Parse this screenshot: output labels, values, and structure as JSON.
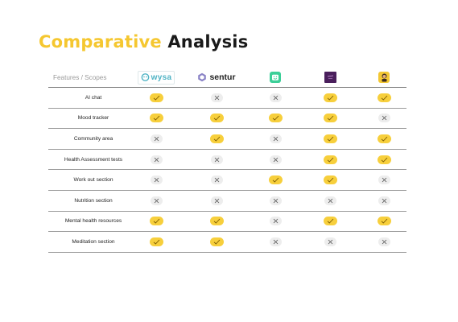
{
  "title": {
    "part1": "Comparative",
    "part2": "Analysis"
  },
  "header": {
    "feature_label": "Features / Scopes",
    "apps": [
      {
        "name": "wysa",
        "icon": "wysa-logo"
      },
      {
        "name": "sentur",
        "icon": "sentur-logo"
      },
      {
        "name": "",
        "icon": "smiley-face-app-icon"
      },
      {
        "name": "",
        "icon": "purple-app-icon"
      },
      {
        "name": "",
        "icon": "character-app-icon"
      }
    ]
  },
  "rows": [
    {
      "feature": "AI chat",
      "values": [
        true,
        false,
        false,
        true,
        true
      ]
    },
    {
      "feature": "Mood tracker",
      "values": [
        true,
        true,
        true,
        true,
        false
      ]
    },
    {
      "feature": "Community area",
      "values": [
        false,
        true,
        false,
        true,
        true
      ]
    },
    {
      "feature": "Health Assessment tests",
      "values": [
        false,
        false,
        false,
        true,
        true
      ]
    },
    {
      "feature": "Work out section",
      "values": [
        false,
        false,
        true,
        true,
        false
      ]
    },
    {
      "feature": "Nutrition section",
      "values": [
        false,
        false,
        false,
        false,
        false
      ]
    },
    {
      "feature": "Mental health resources",
      "values": [
        true,
        true,
        false,
        true,
        true
      ]
    },
    {
      "feature": "Meditation section",
      "values": [
        true,
        true,
        false,
        false,
        false
      ]
    }
  ],
  "colors": {
    "accent": "#f5c730",
    "yes_badge": "#f7cf3c",
    "no_badge": "#ededed"
  }
}
